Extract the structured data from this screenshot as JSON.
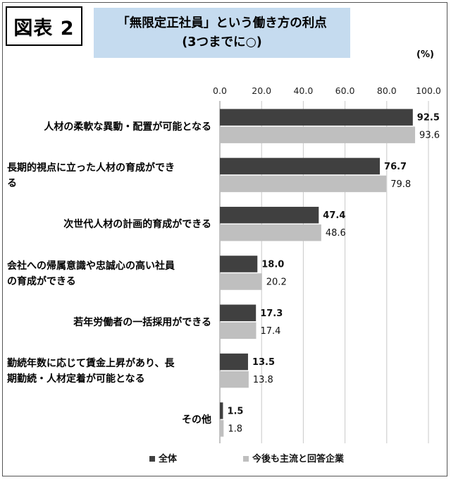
{
  "figure_label": "図表 2",
  "title_line1": "「無限定正社員」という働き方の利点",
  "title_line2": "(3つまでに○)",
  "unit_label": "(%)",
  "chart_data": {
    "type": "bar",
    "orientation": "horizontal",
    "categories": [
      [
        "人材の柔軟な異動・配置が可能となる"
      ],
      [
        "長期的視点に立った人材の育成ができ",
        "る"
      ],
      [
        "次世代人材の計画的育成ができる"
      ],
      [
        "会社への帰属意識や忠誠心の高い社員",
        "の育成ができる"
      ],
      [
        "若年労働者の一括採用ができる"
      ],
      [
        "勤続年数に応じて賃金上昇があり、長",
        "期勤続・人材定着が可能となる"
      ],
      [
        "その他"
      ]
    ],
    "series": [
      {
        "name": "全体",
        "values": [
          92.5,
          76.7,
          47.4,
          18.0,
          17.3,
          13.5,
          1.5
        ],
        "labels": [
          "92.5",
          "76.7",
          "47.4",
          "18.0",
          "17.3",
          "13.5",
          "1.5"
        ],
        "color": "#404040"
      },
      {
        "name": "今後も主流と回答企業",
        "values": [
          93.6,
          79.8,
          48.6,
          20.2,
          17.4,
          13.8,
          1.8
        ],
        "labels": [
          "93.6",
          "79.8",
          "48.6",
          "20.2",
          "17.4",
          "13.8",
          "1.8"
        ],
        "color": "#bfbfbf"
      }
    ],
    "xlim": [
      0,
      100
    ],
    "ticks": [
      "0.0",
      "20.0",
      "40.0",
      "60.0",
      "80.0",
      "100.0"
    ],
    "grid": true,
    "legend_position": "bottom"
  }
}
